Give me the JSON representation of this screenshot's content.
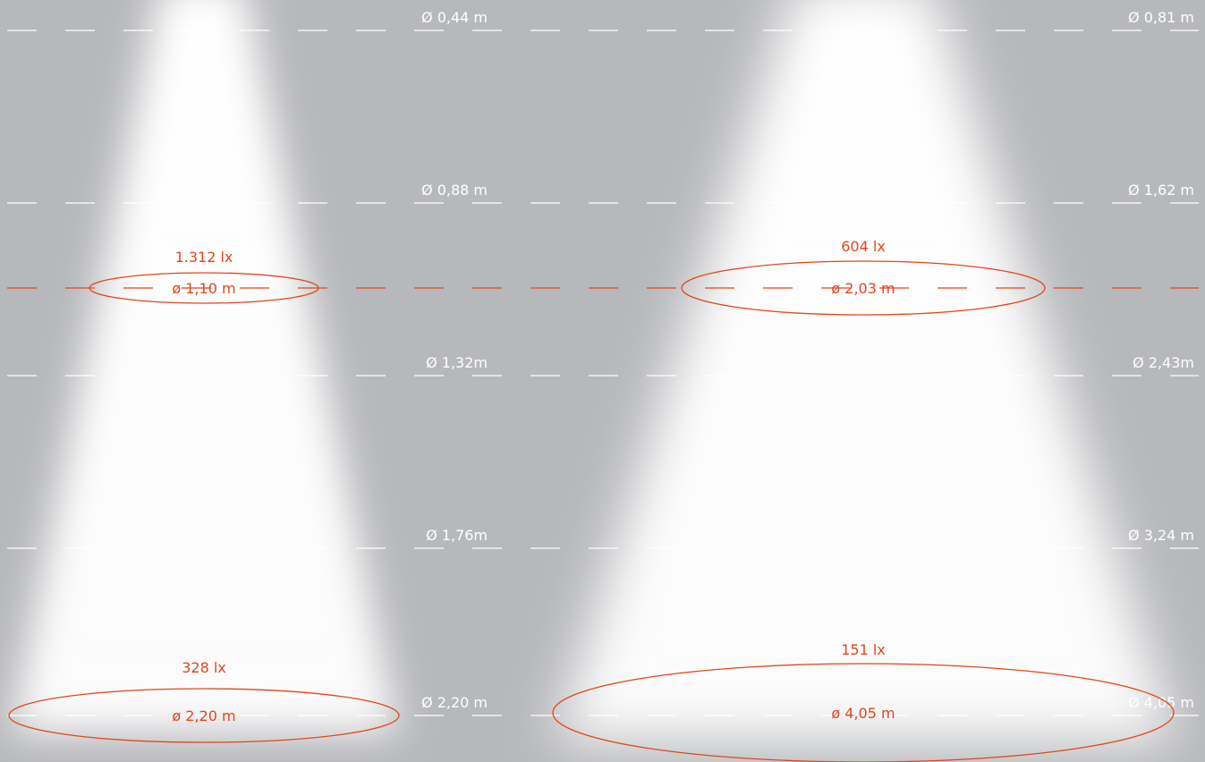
{
  "beams": [
    {
      "levels": [
        "Ø 0,44 m",
        "Ø 0,88 m",
        "Ø 1,32m",
        "Ø 1,76m",
        "Ø 2,20 m"
      ],
      "spots": [
        {
          "lux": "1.312 lx",
          "diameter": "ø 1,10 m"
        },
        {
          "lux": "328 lx",
          "diameter": "ø 2,20 m"
        }
      ]
    },
    {
      "levels": [
        "Ø 0,81 m",
        "Ø 1,62 m",
        "Ø 2,43m",
        "Ø 3,24 m",
        "Ø 4,05 m"
      ],
      "spots": [
        {
          "lux": "604 lx",
          "diameter": "ø 2,03 m"
        },
        {
          "lux": "151 lx",
          "diameter": "ø 4,05 m"
        }
      ]
    }
  ]
}
